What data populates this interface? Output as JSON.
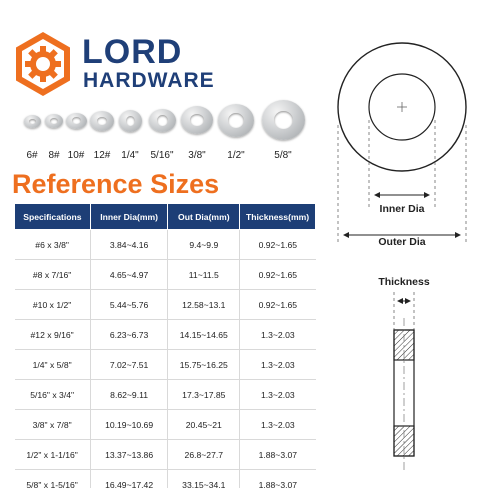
{
  "brand": {
    "name_line1": "LORD",
    "name_line2": "HARDWARE",
    "colors": {
      "navy": "#1f3f78",
      "orange": "#ee6f1f"
    }
  },
  "washers": {
    "labels": [
      "6#",
      "8#",
      "10#",
      "12#",
      "1/4\"",
      "5/16\"",
      "3/8\"",
      "1/2\"",
      "5/8\""
    ]
  },
  "section_title": "Reference Sizes",
  "table": {
    "headers": [
      "Specifications",
      "Inner Dia(mm)",
      "Out Dia(mm)",
      "Thickness(mm)"
    ],
    "rows": [
      [
        "#6 x 3/8\"",
        "3.84~4.16",
        "9.4~9.9",
        "0.92~1.65"
      ],
      [
        "#8 x 7/16\"",
        "4.65~4.97",
        "11~11.5",
        "0.92~1.65"
      ],
      [
        "#10 x 1/2\"",
        "5.44~5.76",
        "12.58~13.1",
        "0.92~1.65"
      ],
      [
        "#12 x 9/16\"",
        "6.23~6.73",
        "14.15~14.65",
        "1.3~2.03"
      ],
      [
        "1/4\" x 5/8\"",
        "7.02~7.51",
        "15.75~16.25",
        "1.3~2.03"
      ],
      [
        "5/16\" x 3/4\"",
        "8.62~9.11",
        "17.3~17.85",
        "1.3~2.03"
      ],
      [
        "3/8\" x 7/8\"",
        "10.19~10.69",
        "20.45~21",
        "1.3~2.03"
      ],
      [
        "1/2\" x 1-1/16\"",
        "13.37~13.86",
        "26.8~27.7",
        "1.88~3.07"
      ],
      [
        "5/8\" x 1-5/16\"",
        "16.49~17.42",
        "33.15~34.1",
        "1.88~3.07"
      ]
    ]
  },
  "diagram": {
    "inner_label": "Inner Dia",
    "outer_label": "Outer Dia",
    "thickness_label": "Thickness"
  }
}
